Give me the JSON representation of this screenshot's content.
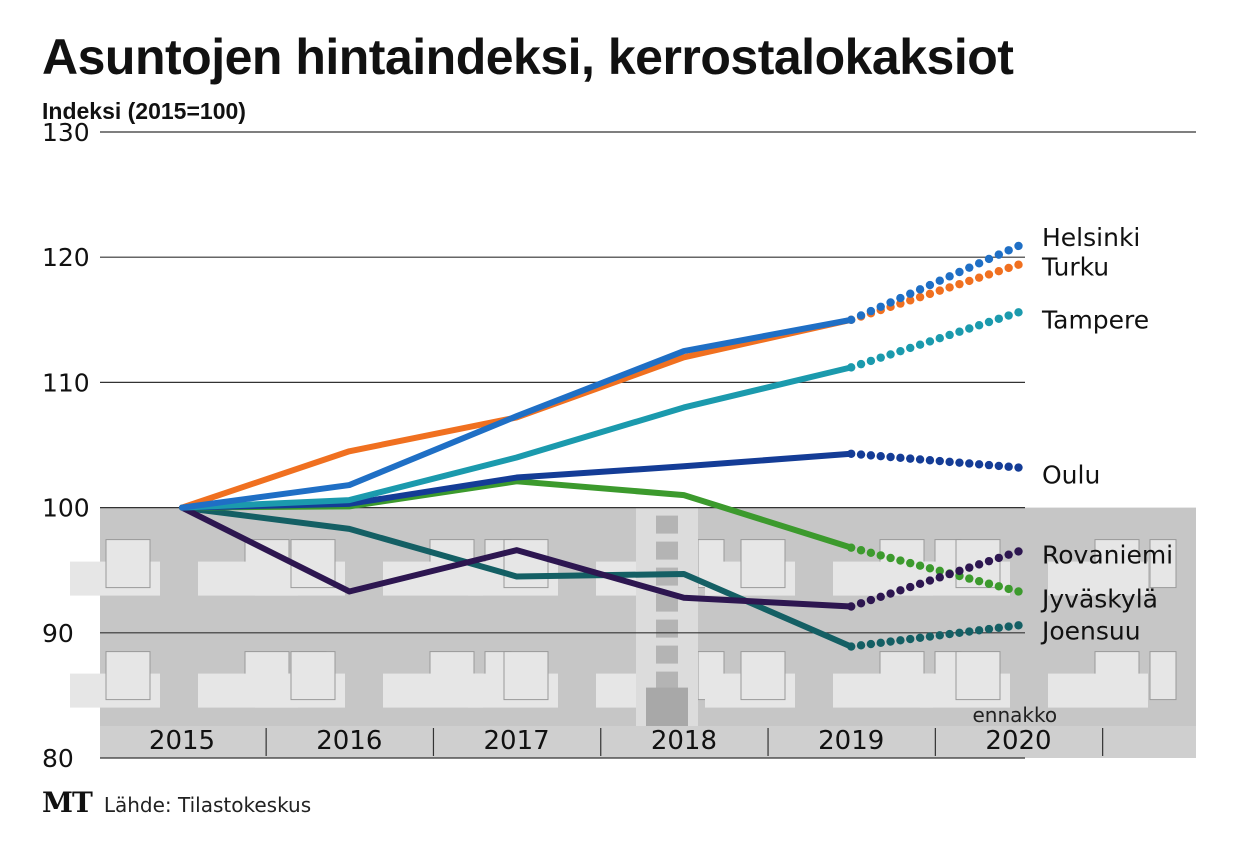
{
  "header": {
    "title": "Asuntojen hintaindeksi, kerrostalokaksiot",
    "subtitle": "Indeksi (2015=100)"
  },
  "footer": {
    "logo": "MT",
    "source": "Lähde: Tilastokeskus"
  },
  "colors": {
    "background_building": "#c6c6c6",
    "window": "#e6e6e6",
    "grid": "#333333"
  },
  "chart_data": {
    "type": "line",
    "title": "Asuntojen hintaindeksi, kerrostalokaksiot",
    "ylabel": "Indeksi (2015=100)",
    "xlabel": "",
    "categories": [
      "2015",
      "2016",
      "2017",
      "2018",
      "2019",
      "2020"
    ],
    "ylim": [
      80,
      130
    ],
    "yticks": [
      80,
      90,
      100,
      110,
      120,
      130
    ],
    "grid": true,
    "forecast_note": "ennakko",
    "forecast_from": "2019",
    "series": [
      {
        "name": "Helsinki",
        "color": "#1f6fc5",
        "values": [
          100,
          101.8,
          107.3,
          112.5,
          115.0,
          120.9
        ]
      },
      {
        "name": "Turku",
        "color": "#f07020",
        "values": [
          100,
          104.5,
          107.2,
          112.0,
          115.0,
          119.4
        ]
      },
      {
        "name": "Tampere",
        "color": "#1b9aad",
        "values": [
          100,
          100.6,
          104.0,
          108.0,
          111.2,
          115.6
        ]
      },
      {
        "name": "Oulu",
        "color": "#143c96",
        "values": [
          100,
          100.3,
          102.4,
          103.3,
          104.3,
          103.2
        ]
      },
      {
        "name": "Rovaniemi",
        "color": "#2d1650",
        "values": [
          100,
          93.3,
          96.6,
          92.8,
          92.1,
          96.5
        ]
      },
      {
        "name": "Jyväskylä",
        "color": "#3c9a2d",
        "values": [
          100,
          100.1,
          102.1,
          101.0,
          96.8,
          93.3
        ]
      },
      {
        "name": "Joensuu",
        "color": "#145f64",
        "values": [
          100,
          98.3,
          94.5,
          94.7,
          88.9,
          90.6
        ]
      }
    ]
  }
}
